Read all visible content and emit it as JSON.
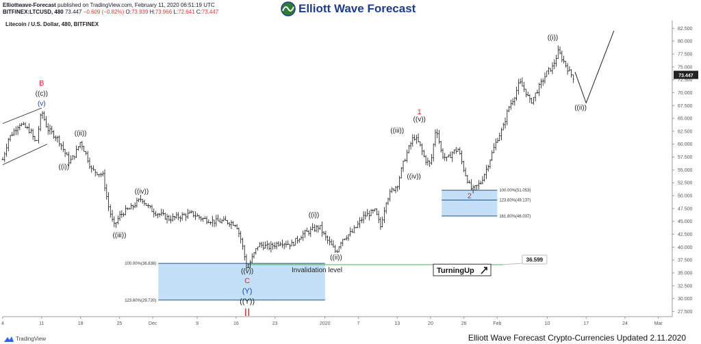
{
  "header": {
    "author": "Elliottwave-Forecast",
    "published_text": "published on TradingView.com, February 11, 2020 06:51:19 UTC",
    "symbol": "BITFINEX:LTCUSD, 480",
    "last": "73.447",
    "change": "−0.609 (−0.82%)",
    "o_label": "O:",
    "o_val": "73.939",
    "h_label": "H:",
    "h_val": "73.966",
    "l_label": "L:",
    "l_val": "72.641",
    "c_label": "C:",
    "c_val": "73.447"
  },
  "logo_text": "Elliott Wave Forecast",
  "chart_title": "Litecoin / U.S. Dollar, 480, BITFINEX",
  "footer": {
    "tv_label": "TradingView",
    "right_text": "Elliott Wave Forecast Crypto-Currencies Updated 2.11.2020"
  },
  "chart_data": {
    "type": "candlestick",
    "y_axis": {
      "min": 26.5,
      "max": 84,
      "ticks": [
        "82.500",
        "80.000",
        "77.500",
        "75.000",
        "72.500",
        "70.000",
        "67.500",
        "65.000",
        "62.500",
        "60.000",
        "57.500",
        "55.000",
        "52.500",
        "50.000",
        "47.500",
        "45.000",
        "42.500",
        "40.000",
        "37.500",
        "35.000",
        "32.500",
        "30.000",
        "27.500"
      ],
      "current_price": "73.447"
    },
    "x_axis": {
      "ticks": [
        {
          "d": 0,
          "label": "4"
        },
        {
          "d": 7,
          "label": "11"
        },
        {
          "d": 14,
          "label": "18"
        },
        {
          "d": 21,
          "label": "25"
        },
        {
          "d": 27,
          "label": "Dec"
        },
        {
          "d": 35,
          "label": "9"
        },
        {
          "d": 42,
          "label": "16"
        },
        {
          "d": 49,
          "label": "23"
        },
        {
          "d": 58,
          "label": "2020"
        },
        {
          "d": 64,
          "label": "7"
        },
        {
          "d": 71,
          "label": "13"
        },
        {
          "d": 77,
          "label": "20"
        },
        {
          "d": 83,
          "label": "26"
        },
        {
          "d": 89,
          "label": "Feb"
        },
        {
          "d": 98,
          "label": "10"
        },
        {
          "d": 105,
          "label": "17"
        },
        {
          "d": 112,
          "label": "24"
        },
        {
          "d": 118,
          "label": "Mar"
        }
      ]
    },
    "price_path": [
      [
        0,
        57
      ],
      [
        1,
        61
      ],
      [
        3,
        64
      ],
      [
        5,
        62.5
      ],
      [
        6,
        60
      ],
      [
        7,
        66.5
      ],
      [
        8,
        63
      ],
      [
        9,
        62
      ],
      [
        10,
        61
      ],
      [
        12,
        56.5
      ],
      [
        13,
        58
      ],
      [
        14,
        60.5
      ],
      [
        15,
        58
      ],
      [
        16,
        55
      ],
      [
        18,
        54
      ],
      [
        19,
        48
      ],
      [
        20,
        44
      ],
      [
        21,
        46
      ],
      [
        22,
        47
      ],
      [
        23,
        47.5
      ],
      [
        24,
        48.5
      ],
      [
        25,
        49.5
      ],
      [
        26,
        48
      ],
      [
        27,
        47
      ],
      [
        28,
        46.5
      ],
      [
        30,
        45.5
      ],
      [
        32,
        46
      ],
      [
        34,
        46.5
      ],
      [
        36,
        45.5
      ],
      [
        38,
        45
      ],
      [
        40,
        45
      ],
      [
        42,
        44.5
      ],
      [
        43,
        41
      ],
      [
        44,
        35.5
      ],
      [
        44.5,
        37
      ],
      [
        46,
        40.5
      ],
      [
        48,
        40
      ],
      [
        50,
        41
      ],
      [
        52,
        40.5
      ],
      [
        54,
        42.5
      ],
      [
        56,
        43.5
      ],
      [
        57,
        44
      ],
      [
        58,
        42
      ],
      [
        59,
        40.5
      ],
      [
        60,
        39
      ],
      [
        61,
        41.5
      ],
      [
        63,
        43
      ],
      [
        65,
        46
      ],
      [
        67,
        47
      ],
      [
        68,
        44
      ],
      [
        69,
        49
      ],
      [
        70,
        51
      ],
      [
        71,
        52
      ],
      [
        72,
        56
      ],
      [
        73,
        59
      ],
      [
        74,
        61.5
      ],
      [
        75,
        60
      ],
      [
        76,
        57
      ],
      [
        77,
        56
      ],
      [
        78,
        63.5
      ],
      [
        79,
        58
      ],
      [
        80,
        57
      ],
      [
        81,
        58.5
      ],
      [
        82,
        59
      ],
      [
        83,
        55
      ],
      [
        84,
        52
      ],
      [
        84.5,
        51
      ],
      [
        86,
        52.5
      ],
      [
        87,
        55
      ],
      [
        88,
        58
      ],
      [
        89,
        61
      ],
      [
        90,
        63
      ],
      [
        91,
        67
      ],
      [
        92,
        69
      ],
      [
        93,
        72
      ],
      [
        94,
        70.5
      ],
      [
        95,
        68
      ],
      [
        96,
        70
      ],
      [
        97,
        72
      ],
      [
        98,
        74
      ],
      [
        99,
        75
      ],
      [
        100,
        78
      ],
      [
        101,
        76
      ],
      [
        102,
        74
      ],
      [
        103,
        72.5
      ]
    ],
    "projection": [
      [
        103,
        74
      ],
      [
        105,
        68
      ],
      [
        110,
        82
      ]
    ],
    "wave_labels": [
      {
        "text": "B",
        "d": 7,
        "p": 71.4,
        "color": "#d32f2f",
        "size": 11
      },
      {
        "text": "((c))",
        "d": 7,
        "p": 69.4,
        "color": "#222",
        "size": 10
      },
      {
        "text": "(v)",
        "d": 7,
        "p": 67.5,
        "color": "#1e40af",
        "size": 10
      },
      {
        "text": "((ii))",
        "d": 14,
        "p": 61.7,
        "color": "#222",
        "size": 10
      },
      {
        "text": "((i))",
        "d": 11,
        "p": 55.2,
        "color": "#222",
        "size": 10
      },
      {
        "text": "((iv))",
        "d": 25,
        "p": 50.4,
        "color": "#222",
        "size": 10
      },
      {
        "text": "((iii))",
        "d": 21,
        "p": 41.9,
        "color": "#222",
        "size": 10
      },
      {
        "text": "((i))",
        "d": 56,
        "p": 45.8,
        "color": "#222",
        "size": 10
      },
      {
        "text": "((ii))",
        "d": 60,
        "p": 37.6,
        "color": "#222",
        "size": 10
      },
      {
        "text": "((v))",
        "d": 44,
        "p": 34.9,
        "color": "#222",
        "size": 10
      },
      {
        "text": "C",
        "d": 44,
        "p": 33.0,
        "color": "#d32f2f",
        "size": 11
      },
      {
        "text": "(Y)",
        "d": 44,
        "p": 31.0,
        "color": "#1e40af",
        "size": 11
      },
      {
        "text": "((Y))",
        "d": 44,
        "p": 29.0,
        "color": "#222",
        "size": 11
      },
      {
        "text": "II",
        "d": 44,
        "p": 26.6,
        "color": "#d32f2f",
        "size": 16
      },
      {
        "text": "1",
        "d": 75,
        "p": 65.8,
        "color": "#d32f2f",
        "size": 11
      },
      {
        "text": "((v))",
        "d": 75,
        "p": 64.4,
        "color": "#222",
        "size": 10
      },
      {
        "text": "((iii))",
        "d": 71,
        "p": 62.2,
        "color": "#222",
        "size": 10
      },
      {
        "text": "((iv))",
        "d": 74,
        "p": 53.3,
        "color": "#222",
        "size": 10
      },
      {
        "text": "2",
        "d": 84,
        "p": 49.5,
        "color": "#d32f2f",
        "size": 11
      },
      {
        "text": "((i))",
        "d": 99,
        "p": 80.3,
        "color": "#222",
        "size": 10
      },
      {
        "text": "((ii))",
        "d": 104,
        "p": 66.7,
        "color": "#222",
        "size": 10
      }
    ],
    "zones": [
      {
        "name": "lower-blue-box",
        "d1": 28,
        "d2": 58,
        "p_top": 36.838,
        "p_bot": 29.72,
        "levels": [
          {
            "pct": "100.00%(36.838)",
            "p": 36.838
          },
          {
            "pct": "123.60%(29.720)",
            "p": 29.72
          }
        ]
      },
      {
        "name": "upper-blue-box",
        "d1": 79,
        "d2": 89,
        "p_top": 51.053,
        "p_bot": 46.037,
        "levels": [
          {
            "pct": "100.00%(51.053)",
            "p": 51.053
          },
          {
            "pct": "123.60%(49.137)",
            "p": 49.137
          },
          {
            "pct": "161.80%(46.037)",
            "p": 46.037
          }
        ]
      }
    ],
    "invalidation": {
      "label": "Invalidation level",
      "value": "36.599",
      "p": 36.599,
      "d1": 44,
      "d2": 90
    },
    "turning_up": "TurningUp",
    "colors": {
      "zone_fill": "#b3d9f5",
      "zone_border": "#1f4f8f",
      "green_line": "#4caf50",
      "up": "#111111"
    }
  }
}
